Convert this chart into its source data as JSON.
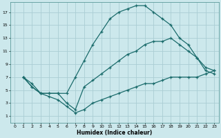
{
  "xlabel": "Humidex (Indice chaleur)",
  "bg_color": "#cce8ec",
  "grid_color": "#aacdd4",
  "line_color": "#1a6b6b",
  "xlim": [
    -0.5,
    23.5
  ],
  "ylim": [
    0,
    18.5
  ],
  "xticks": [
    0,
    1,
    2,
    3,
    4,
    5,
    6,
    7,
    8,
    9,
    10,
    11,
    12,
    13,
    14,
    15,
    16,
    17,
    18,
    19,
    20,
    21,
    22,
    23
  ],
  "yticks": [
    1,
    3,
    5,
    7,
    9,
    11,
    13,
    15,
    17
  ],
  "curves": [
    {
      "x": [
        1,
        2,
        3,
        4,
        5,
        6,
        7,
        8,
        9,
        10,
        11,
        12,
        13,
        14,
        15,
        16,
        17,
        18,
        19,
        20,
        21,
        22,
        23
      ],
      "y": [
        7,
        6,
        4.5,
        4.5,
        4.5,
        4.5,
        7,
        9.5,
        12,
        14,
        16,
        17,
        17.5,
        18,
        18,
        17,
        16,
        15,
        13,
        12,
        10,
        8,
        7.5
      ]
    },
    {
      "x": [
        1,
        2,
        3,
        4,
        5,
        6,
        7,
        8,
        9,
        10,
        11,
        12,
        13,
        14,
        15,
        16,
        17,
        18,
        19,
        20,
        21,
        22,
        23
      ],
      "y": [
        7,
        5.5,
        4.5,
        4.5,
        4.5,
        3,
        2,
        5.5,
        6.5,
        7.5,
        8.5,
        9.5,
        10.5,
        11,
        12,
        12.5,
        12.5,
        13,
        12,
        11,
        10,
        8.5,
        8
      ]
    },
    {
      "x": [
        1,
        2,
        3,
        4,
        5,
        6,
        7,
        8,
        9,
        10,
        11,
        12,
        13,
        14,
        15,
        16,
        17,
        18,
        19,
        20,
        21,
        22,
        23
      ],
      "y": [
        7,
        5.5,
        4.5,
        4,
        3.5,
        2.5,
        1.5,
        2,
        3,
        3.5,
        4,
        4.5,
        5,
        5.5,
        6,
        6,
        6.5,
        7,
        7,
        7,
        7,
        7.5,
        8
      ]
    }
  ]
}
